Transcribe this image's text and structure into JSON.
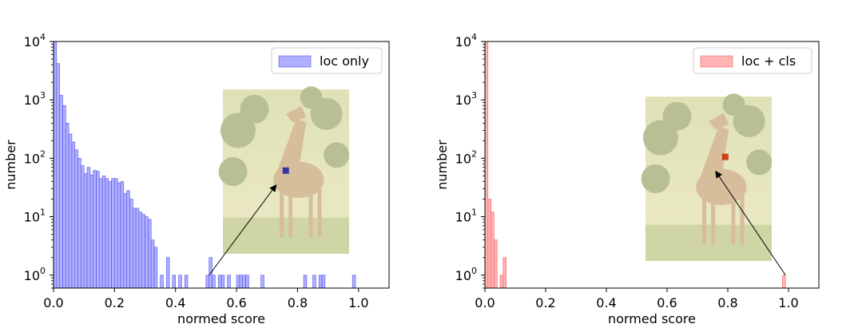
{
  "chart_data": [
    {
      "type": "bar",
      "xlabel": "normed score",
      "ylabel": "number",
      "xlim": [
        0.0,
        1.1
      ],
      "ylim": [
        0.6,
        10000
      ],
      "yscale": "log",
      "xticks": [
        "0.0",
        "0.2",
        "0.4",
        "0.6",
        "0.8",
        "1.0"
      ],
      "yticks": [
        {
          "base": "10",
          "exp": "0"
        },
        {
          "base": "10",
          "exp": "1"
        },
        {
          "base": "10",
          "exp": "2"
        },
        {
          "base": "10",
          "exp": "3"
        },
        {
          "base": "10",
          "exp": "4"
        }
      ],
      "legend": {
        "label": "loc only",
        "position": "top-right"
      },
      "color": "#7b7bff",
      "edge_color": "#5555e6",
      "bin_width": 0.01,
      "series": [
        {
          "x": [
            0.0,
            0.01,
            0.02,
            0.03,
            0.04,
            0.05,
            0.06,
            0.07,
            0.08,
            0.09,
            0.1,
            0.11,
            0.12,
            0.13,
            0.14,
            0.15,
            0.16,
            0.17,
            0.18,
            0.19,
            0.2,
            0.21,
            0.22,
            0.23,
            0.24,
            0.25,
            0.26,
            0.27,
            0.28,
            0.29,
            0.3,
            0.31,
            0.32,
            0.33,
            0.35,
            0.37,
            0.39,
            0.41,
            0.43,
            0.5,
            0.51,
            0.52,
            0.54,
            0.55,
            0.57,
            0.6,
            0.61,
            0.62,
            0.63,
            0.68,
            0.82,
            0.85,
            0.87,
            0.88,
            0.98
          ],
          "values": [
            10000,
            4200,
            1200,
            800,
            400,
            260,
            190,
            140,
            100,
            75,
            55,
            70,
            52,
            62,
            60,
            45,
            50,
            45,
            40,
            45,
            45,
            38,
            40,
            25,
            28,
            20,
            14,
            14,
            12,
            11,
            10,
            9,
            4,
            3,
            1,
            2,
            1,
            1,
            1,
            1,
            2,
            1,
            1,
            1,
            1,
            1,
            1,
            1,
            1,
            1,
            1,
            1,
            1,
            1,
            1
          ]
        }
      ],
      "inset": {
        "marker_color": "#1a1aaa",
        "arrow_from": [
          0.51,
          1
        ],
        "arrow_to": [
          0.73,
          35
        ]
      }
    },
    {
      "type": "bar",
      "xlabel": "normed score",
      "ylabel": "number",
      "xlim": [
        0.0,
        1.1
      ],
      "ylim": [
        0.6,
        10000
      ],
      "yscale": "log",
      "xticks": [
        "0.0",
        "0.2",
        "0.4",
        "0.6",
        "0.8",
        "1.0"
      ],
      "yticks": [
        {
          "base": "10",
          "exp": "0"
        },
        {
          "base": "10",
          "exp": "1"
        },
        {
          "base": "10",
          "exp": "2"
        },
        {
          "base": "10",
          "exp": "3"
        },
        {
          "base": "10",
          "exp": "4"
        }
      ],
      "legend": {
        "label": "loc + cls",
        "position": "top-right"
      },
      "color": "#ff8080",
      "edge_color": "#f06060",
      "bin_width": 0.01,
      "series": [
        {
          "x": [
            0.0,
            0.01,
            0.02,
            0.03,
            0.05,
            0.06,
            0.98
          ],
          "values": [
            10000,
            20,
            12,
            4,
            1,
            2,
            1
          ]
        }
      ],
      "inset": {
        "marker_color": "#cc2200",
        "arrow_from": [
          0.99,
          1
        ],
        "arrow_to": [
          0.76,
          60
        ]
      }
    }
  ]
}
